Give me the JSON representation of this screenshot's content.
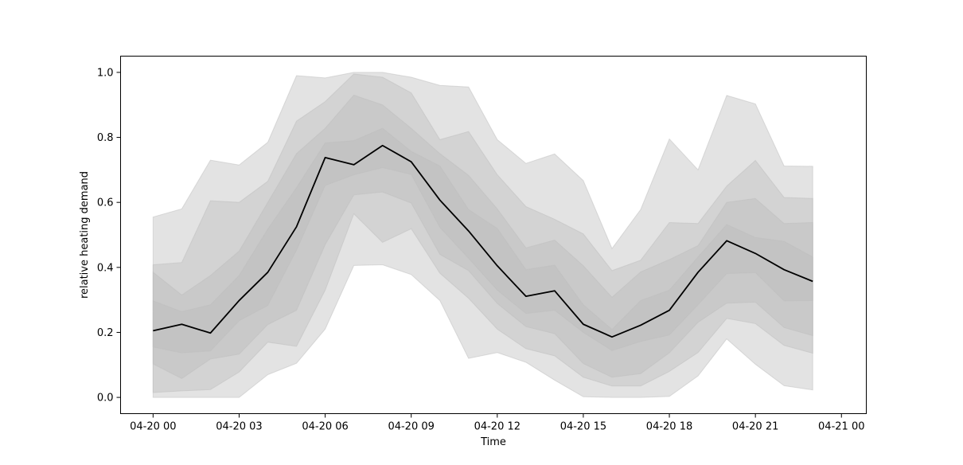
{
  "chart_data": {
    "type": "area",
    "title": "",
    "xlabel": "Time",
    "ylabel": "relative heating demand",
    "xlim": [
      "04-19 22:52",
      "04-21 00:52"
    ],
    "ylim": [
      -0.05,
      1.05
    ],
    "grid": false,
    "legend": "none",
    "x": [
      "00:00",
      "01:00",
      "02:00",
      "03:00",
      "04:00",
      "05:00",
      "06:00",
      "07:00",
      "08:00",
      "09:00",
      "10:00",
      "11:00",
      "12:00",
      "13:00",
      "14:00",
      "15:00",
      "16:00",
      "17:00",
      "18:00",
      "19:00",
      "20:00",
      "21:00",
      "22:00",
      "23:00"
    ],
    "x_ticks": [
      {
        "label": "04-20 00",
        "hour": 0
      },
      {
        "label": "04-20 03",
        "hour": 3
      },
      {
        "label": "04-20 06",
        "hour": 6
      },
      {
        "label": "04-20 09",
        "hour": 9
      },
      {
        "label": "04-20 12",
        "hour": 12
      },
      {
        "label": "04-20 15",
        "hour": 15
      },
      {
        "label": "04-20 18",
        "hour": 18
      },
      {
        "label": "04-20 21",
        "hour": 21
      },
      {
        "label": "04-21 00",
        "hour": 24
      }
    ],
    "y_ticks": [
      "0.0",
      "0.2",
      "0.4",
      "0.6",
      "0.8",
      "1.0"
    ],
    "median": [
      0.205,
      0.225,
      0.198,
      0.298,
      0.385,
      0.525,
      0.738,
      0.716,
      0.775,
      0.725,
      0.607,
      0.512,
      0.405,
      0.311,
      0.328,
      0.225,
      0.186,
      0.222,
      0.268,
      0.385,
      0.482,
      0.443,
      0.393,
      0.357
    ],
    "bands": [
      {
        "lower": [
          0.0,
          0.0,
          0.0,
          0.0,
          0.07,
          0.105,
          0.21,
          0.406,
          0.408,
          0.378,
          0.298,
          0.12,
          0.138,
          0.108,
          0.053,
          0.002,
          0.0,
          0.0,
          0.003,
          0.066,
          0.18,
          0.102,
          0.036,
          0.023
        ],
        "upper": [
          0.555,
          0.58,
          0.73,
          0.715,
          0.785,
          0.99,
          0.983,
          1.0,
          1.0,
          0.985,
          0.96,
          0.955,
          0.793,
          0.72,
          0.749,
          0.667,
          0.458,
          0.578,
          0.795,
          0.7,
          0.929,
          0.903,
          0.712,
          0.711
        ]
      },
      {
        "lower": [
          0.015,
          0.02,
          0.024,
          0.078,
          0.17,
          0.157,
          0.33,
          0.565,
          0.477,
          0.519,
          0.382,
          0.305,
          0.21,
          0.15,
          0.128,
          0.062,
          0.035,
          0.035,
          0.08,
          0.138,
          0.243,
          0.227,
          0.16,
          0.136
        ],
        "upper": [
          0.408,
          0.415,
          0.605,
          0.6,
          0.665,
          0.85,
          0.91,
          0.995,
          0.985,
          0.937,
          0.793,
          0.818,
          0.685,
          0.587,
          0.548,
          0.503,
          0.39,
          0.422,
          0.538,
          0.535,
          0.65,
          0.729,
          0.615,
          0.612
        ]
      },
      {
        "lower": [
          0.103,
          0.058,
          0.118,
          0.133,
          0.224,
          0.268,
          0.47,
          0.623,
          0.632,
          0.598,
          0.44,
          0.39,
          0.289,
          0.218,
          0.196,
          0.104,
          0.062,
          0.073,
          0.137,
          0.231,
          0.29,
          0.293,
          0.215,
          0.19
        ],
        "upper": [
          0.385,
          0.315,
          0.375,
          0.45,
          0.6,
          0.75,
          0.828,
          0.93,
          0.9,
          0.828,
          0.75,
          0.683,
          0.58,
          0.46,
          0.484,
          0.405,
          0.308,
          0.386,
          0.424,
          0.467,
          0.6,
          0.612,
          0.535,
          0.538
        ]
      },
      {
        "lower": [
          0.155,
          0.137,
          0.143,
          0.236,
          0.283,
          0.453,
          0.652,
          0.685,
          0.707,
          0.686,
          0.523,
          0.428,
          0.33,
          0.258,
          0.268,
          0.2,
          0.144,
          0.172,
          0.192,
          0.285,
          0.381,
          0.384,
          0.297,
          0.298
        ],
        "upper": [
          0.297,
          0.264,
          0.285,
          0.375,
          0.518,
          0.645,
          0.783,
          0.79,
          0.828,
          0.757,
          0.712,
          0.578,
          0.52,
          0.393,
          0.407,
          0.285,
          0.209,
          0.298,
          0.33,
          0.432,
          0.532,
          0.492,
          0.48,
          0.432
        ]
      }
    ],
    "colors": {
      "band_fill": "#bdbdbd",
      "median_line": "#000000",
      "axes": "#000000"
    }
  }
}
